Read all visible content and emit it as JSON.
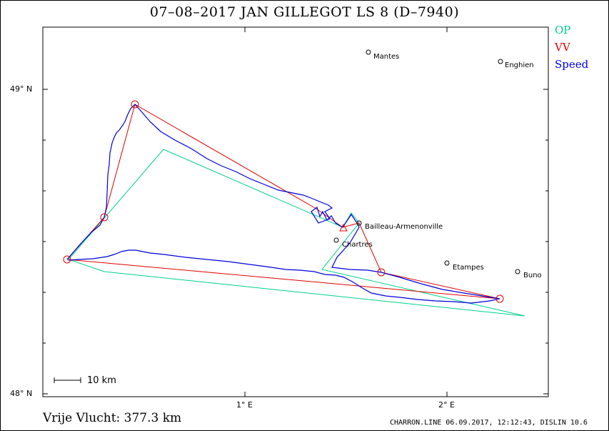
{
  "header": {
    "title": "07–08–2017    JAN GILLEGOT    LS 8 (D–7940)"
  },
  "legend": [
    {
      "label": "OP",
      "color": "#00d08a"
    },
    {
      "label": "VV",
      "color": "#e00000"
    },
    {
      "label": "Speed",
      "color": "#0000ee"
    }
  ],
  "axes": {
    "y_labels": [
      "49° N",
      "48° N"
    ],
    "x_labels": [
      "1° E",
      "2° E"
    ]
  },
  "scale_bar": {
    "label": "10  km"
  },
  "places": [
    {
      "name": "Mantes"
    },
    {
      "name": "Enghien"
    },
    {
      "name": "Bailleau-Armenonville"
    },
    {
      "name": "Chartres"
    },
    {
      "name": "Etampes"
    },
    {
      "name": "Buno"
    }
  ],
  "summary": {
    "text": "Vrije Vlucht:  377.3 km"
  },
  "footer": {
    "text": "CHARRON.LINE 06.09.2017, 12:12:43, DISLIN 10.6"
  }
}
